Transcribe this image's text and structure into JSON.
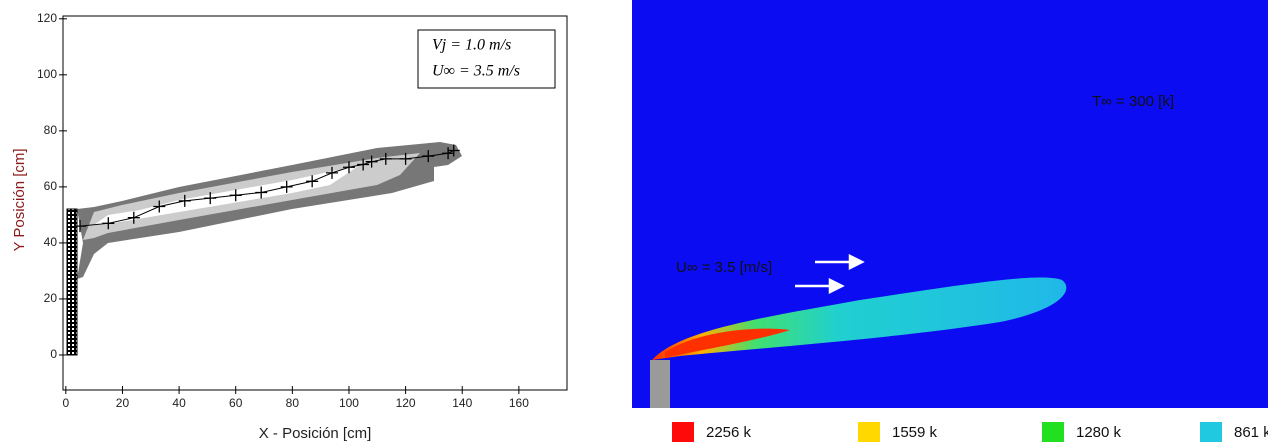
{
  "chart_data": {
    "type": "line",
    "x_label": "X - Posición [cm]",
    "y_label": "Y Posición [cm]",
    "x": [
      5,
      15,
      24,
      33,
      42,
      51,
      60,
      69,
      78,
      87,
      94,
      100,
      105,
      108,
      113,
      120,
      128,
      135,
      137
    ],
    "y": [
      46,
      47,
      49,
      53,
      55,
      56,
      57,
      58,
      60,
      62,
      65,
      67,
      68,
      69,
      70,
      70,
      71,
      72,
      73
    ],
    "color": "#000000",
    "xlim": [
      -1,
      177
    ],
    "ylim": [
      -12.5,
      121
    ],
    "xticks": [
      0,
      20,
      40,
      60,
      80,
      100,
      120,
      140,
      160
    ],
    "yticks": [
      0,
      20,
      40,
      60,
      80,
      100,
      120
    ],
    "annotations": [
      "Vj = 1.0 m/s",
      "U∞ = 3.5 m/s"
    ]
  },
  "simulation": {
    "ambient_label": "T∞ = 300 [k]",
    "velocity_label": "U∞ = 3.5 [m/s]",
    "legend": [
      {
        "label": "2256 k",
        "color": "#ff0a0a"
      },
      {
        "label": "1559 k",
        "color": "#ffd800"
      },
      {
        "label": "1280 k",
        "color": "#20e020"
      },
      {
        "label": "861 k",
        "color": "#20c8e0"
      }
    ]
  }
}
